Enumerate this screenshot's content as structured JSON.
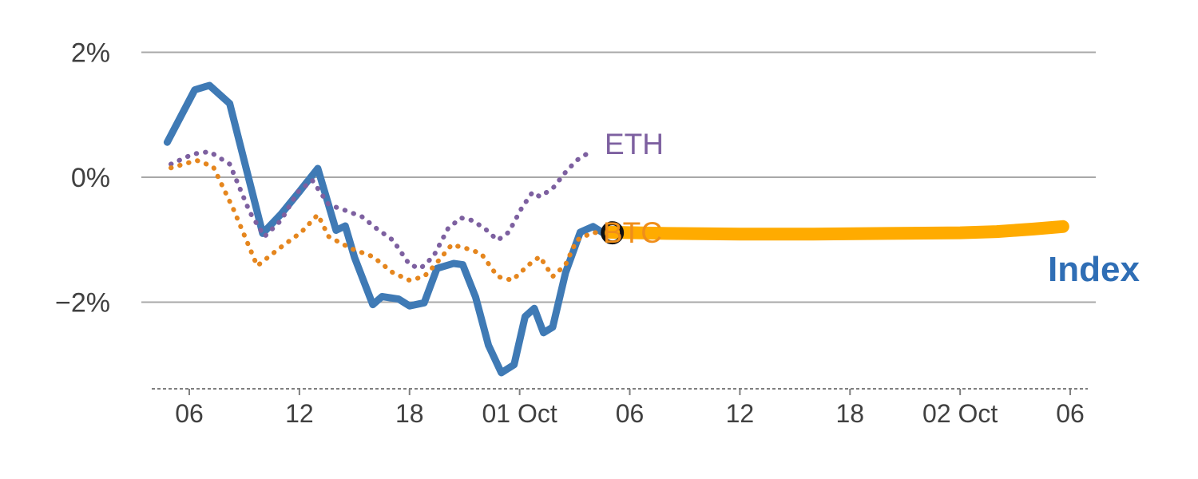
{
  "chart_data": {
    "type": "line",
    "title": "",
    "xlabel": "",
    "ylabel": "",
    "x_unit": "hours (Sep 30 00:00 = 0)",
    "xlim": [
      4,
      55
    ],
    "ylim": [
      -3.4,
      2.4
    ],
    "grid": "horizontal only",
    "legend_position": "inline labels at line ends",
    "grid_color": "#a8a8a8",
    "axis_text_color": "#404040",
    "axis_line_color": "#7f7f7f",
    "y_axis": {
      "ticks": [
        {
          "value": 2,
          "label": "2%"
        },
        {
          "value": 0,
          "label": "0%"
        },
        {
          "value": -2,
          "label": "−2%"
        }
      ]
    },
    "x_axis": {
      "ticks": [
        {
          "pos": 6,
          "label": "06"
        },
        {
          "pos": 12,
          "label": "12"
        },
        {
          "pos": 18,
          "label": "18"
        },
        {
          "pos": 24,
          "label": "01 Oct"
        },
        {
          "pos": 30,
          "label": "06"
        },
        {
          "pos": 36,
          "label": "12"
        },
        {
          "pos": 42,
          "label": "18"
        },
        {
          "pos": 48,
          "label": "02 Oct"
        },
        {
          "pos": 54,
          "label": "06"
        }
      ]
    },
    "series": [
      {
        "name": "Index",
        "color": "#3f7ab5",
        "style": "solid",
        "width": 9,
        "points": [
          [
            4.8,
            0.56
          ],
          [
            6.3,
            1.4
          ],
          [
            7.1,
            1.47
          ],
          [
            8.2,
            1.18
          ],
          [
            10.0,
            -0.9
          ],
          [
            11.0,
            -0.59
          ],
          [
            12.0,
            -0.23
          ],
          [
            13.0,
            0.14
          ],
          [
            14.0,
            -0.85
          ],
          [
            14.5,
            -0.78
          ],
          [
            15.0,
            -1.28
          ],
          [
            16.0,
            -2.04
          ],
          [
            16.5,
            -1.91
          ],
          [
            17.4,
            -1.95
          ],
          [
            18.0,
            -2.06
          ],
          [
            18.8,
            -2.01
          ],
          [
            19.5,
            -1.46
          ],
          [
            20.4,
            -1.38
          ],
          [
            20.9,
            -1.4
          ],
          [
            21.6,
            -1.92
          ],
          [
            22.3,
            -2.69
          ],
          [
            23.0,
            -3.13
          ],
          [
            23.7,
            -3.0
          ],
          [
            24.3,
            -2.23
          ],
          [
            24.8,
            -2.1
          ],
          [
            25.3,
            -2.49
          ],
          [
            25.8,
            -2.4
          ],
          [
            26.5,
            -1.53
          ],
          [
            27.3,
            -0.88
          ],
          [
            28.0,
            -0.79
          ],
          [
            28.6,
            -0.9
          ]
        ]
      },
      {
        "name": "ETH",
        "color": "#7d60a0",
        "style": "dotted",
        "width": 6,
        "points": [
          [
            5.0,
            0.21
          ],
          [
            6.2,
            0.37
          ],
          [
            7.1,
            0.41
          ],
          [
            8.2,
            0.21
          ],
          [
            9.3,
            -0.56
          ],
          [
            10.1,
            -0.95
          ],
          [
            11.0,
            -0.69
          ],
          [
            11.9,
            -0.24
          ],
          [
            12.7,
            -0.05
          ],
          [
            13.6,
            -0.44
          ],
          [
            14.5,
            -0.53
          ],
          [
            15.4,
            -0.63
          ],
          [
            16.2,
            -0.82
          ],
          [
            17.1,
            -1.01
          ],
          [
            18.0,
            -1.4
          ],
          [
            18.6,
            -1.46
          ],
          [
            19.3,
            -1.27
          ],
          [
            20.1,
            -0.82
          ],
          [
            20.8,
            -0.65
          ],
          [
            21.4,
            -0.69
          ],
          [
            22.1,
            -0.82
          ],
          [
            22.8,
            -1.01
          ],
          [
            23.4,
            -0.88
          ],
          [
            24.1,
            -0.5
          ],
          [
            24.7,
            -0.24
          ],
          [
            25.1,
            -0.31
          ],
          [
            25.8,
            -0.18
          ],
          [
            26.5,
            0.08
          ],
          [
            27.1,
            0.27
          ],
          [
            27.8,
            0.4
          ]
        ]
      },
      {
        "name": "BTC",
        "color": "#e5861e",
        "style": "dotted",
        "width": 6,
        "points": [
          [
            5.0,
            0.15
          ],
          [
            6.4,
            0.27
          ],
          [
            7.3,
            0.17
          ],
          [
            8.4,
            -0.51
          ],
          [
            9.7,
            -1.42
          ],
          [
            10.9,
            -1.14
          ],
          [
            12.1,
            -0.88
          ],
          [
            13.0,
            -0.6
          ],
          [
            13.6,
            -0.95
          ],
          [
            14.8,
            -1.14
          ],
          [
            16.0,
            -1.27
          ],
          [
            17.1,
            -1.53
          ],
          [
            18.0,
            -1.65
          ],
          [
            18.8,
            -1.59
          ],
          [
            19.4,
            -1.4
          ],
          [
            20.3,
            -1.08
          ],
          [
            21.1,
            -1.14
          ],
          [
            21.9,
            -1.22
          ],
          [
            22.8,
            -1.59
          ],
          [
            23.6,
            -1.65
          ],
          [
            24.5,
            -1.4
          ],
          [
            25.1,
            -1.27
          ],
          [
            25.8,
            -1.59
          ],
          [
            26.5,
            -1.4
          ],
          [
            27.1,
            -1.01
          ],
          [
            28.0,
            -0.88
          ],
          [
            28.6,
            -0.91
          ]
        ]
      },
      {
        "name": "BTC flat segment",
        "color": "#ffab00",
        "style": "solid",
        "width": 16,
        "points": [
          [
            28.9,
            -0.88
          ],
          [
            32,
            -0.9
          ],
          [
            36,
            -0.91
          ],
          [
            40,
            -0.91
          ],
          [
            44,
            -0.9
          ],
          [
            48,
            -0.89
          ],
          [
            50,
            -0.87
          ],
          [
            52,
            -0.83
          ],
          [
            53.6,
            -0.79
          ]
        ]
      }
    ],
    "marker": {
      "h": 29.05,
      "v": -0.89,
      "r": 12,
      "color": "#111111",
      "shape": "open-circle"
    }
  }
}
